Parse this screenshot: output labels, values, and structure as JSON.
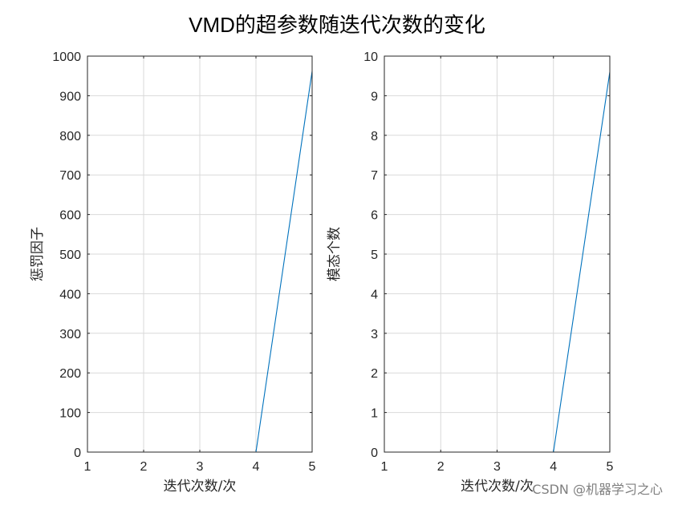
{
  "figure": {
    "suptitle": "VMD的超参数随迭代次数的变化",
    "watermark": "CSDN @机器学习之心"
  },
  "chart_data": [
    {
      "type": "line",
      "xlabel": "迭代次数/次",
      "ylabel": "惩罚因子",
      "xlim": [
        1,
        5
      ],
      "ylim": [
        0,
        1000
      ],
      "xticks": [
        1,
        2,
        3,
        4,
        5
      ],
      "yticks": [
        0,
        100,
        200,
        300,
        400,
        500,
        600,
        700,
        800,
        900,
        1000
      ],
      "grid": true,
      "series": [
        {
          "color": "#0072bd",
          "x": [
            1,
            2,
            3,
            4,
            5
          ],
          "y": [
            0,
            0,
            0,
            0,
            962
          ]
        }
      ]
    },
    {
      "type": "line",
      "xlabel": "迭代次数/次",
      "ylabel": "模态个数",
      "xlim": [
        1,
        5
      ],
      "ylim": [
        0,
        10
      ],
      "xticks": [
        1,
        2,
        3,
        4,
        5
      ],
      "yticks": [
        0,
        1,
        2,
        3,
        4,
        5,
        6,
        7,
        8,
        9,
        10
      ],
      "grid": true,
      "series": [
        {
          "color": "#0072bd",
          "x": [
            1,
            2,
            3,
            4,
            5
          ],
          "y": [
            0,
            0,
            0,
            0,
            9.6
          ]
        }
      ]
    }
  ]
}
